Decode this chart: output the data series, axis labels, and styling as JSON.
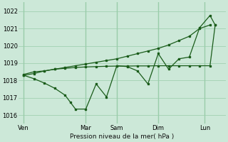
{
  "bg_color": "#cce8d8",
  "grid_color": "#99ccaa",
  "line_color": "#1a5c1a",
  "title": "Pression niveau de la mer( hPa )",
  "ylim": [
    1015.5,
    1022.5
  ],
  "yticks": [
    1016,
    1017,
    1018,
    1019,
    1020,
    1021,
    1022
  ],
  "day_labels": [
    "Ven",
    "Mar",
    "Sam",
    "Dim",
    "Lun"
  ],
  "day_positions": [
    0.5,
    6.5,
    9.5,
    13.5,
    18.0
  ],
  "xlim": [
    0,
    20
  ],
  "series1_x": [
    0.5,
    1.5,
    2.5,
    3.5,
    4.5,
    5.5,
    6.5,
    7.5,
    8.5,
    9.5,
    10.5,
    11.5,
    12.5,
    13.5,
    14.5,
    15.5,
    16.5,
    17.5,
    18.5
  ],
  "series1_y": [
    1018.3,
    1018.4,
    1018.55,
    1018.65,
    1018.75,
    1018.85,
    1018.95,
    1019.05,
    1019.15,
    1019.25,
    1019.4,
    1019.55,
    1019.7,
    1019.85,
    1020.05,
    1020.3,
    1020.55,
    1021.0,
    1021.2
  ],
  "series2_x": [
    0.5,
    1.5,
    2.5,
    3.5,
    4.5,
    5.0,
    5.5,
    6.5,
    7.5,
    8.5,
    9.5,
    10.5,
    11.5,
    12.5,
    13.5,
    14.5,
    15.5,
    16.5,
    17.5,
    18.5,
    19.0
  ],
  "series2_y": [
    1018.3,
    1018.1,
    1017.85,
    1017.55,
    1017.15,
    1016.75,
    1016.35,
    1016.35,
    1017.8,
    1017.05,
    1018.85,
    1018.8,
    1018.55,
    1017.8,
    1019.55,
    1018.65,
    1019.25,
    1019.35,
    1021.05,
    1021.75,
    1021.2
  ],
  "series3_x": [
    0.5,
    1.5,
    2.5,
    3.5,
    4.5,
    5.5,
    6.5,
    7.5,
    8.5,
    9.5,
    10.5,
    11.5,
    12.5,
    13.5,
    14.5,
    15.5,
    16.5,
    17.5,
    18.5,
    19.0
  ],
  "series3_y": [
    1018.35,
    1018.5,
    1018.55,
    1018.65,
    1018.7,
    1018.75,
    1018.78,
    1018.8,
    1018.82,
    1018.83,
    1018.83,
    1018.84,
    1018.84,
    1018.85,
    1018.85,
    1018.85,
    1018.85,
    1018.85,
    1018.85,
    1021.2
  ]
}
